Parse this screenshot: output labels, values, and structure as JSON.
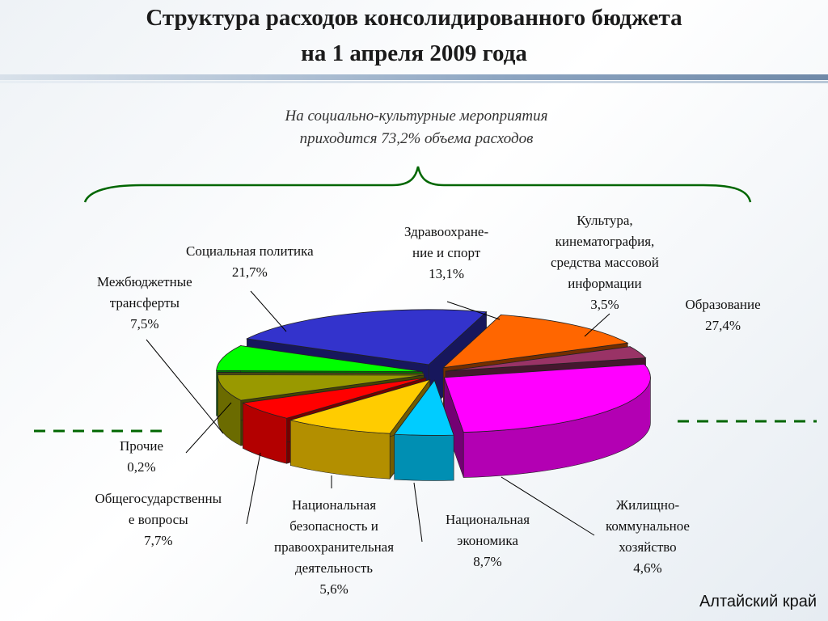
{
  "title_line1": "Структура расходов  консолидированного бюджета",
  "title_line2": "на 1 апреля 2009 года",
  "subtitle_line1": "На социально-культурные мероприятия",
  "subtitle_line2": "приходится 73,2% объема расходов",
  "footer": "Алтайский край",
  "colors": {
    "education": "#ff00ff",
    "housing": "#00ccff",
    "economy": "#ffcc00",
    "security": "#ff0000",
    "general": "#999900",
    "other": "#ffff00",
    "transfers": "#00ff00",
    "social_policy": "#3333cc",
    "health": "#ff6600",
    "culture": "#993366",
    "bracket": "#006600"
  },
  "chart_data": {
    "type": "pie",
    "title": "Структура расходов  консолидированного бюджета на 1 апреля 2009 года",
    "slices": [
      {
        "lines": [
          "Образование",
          "27,4%"
        ],
        "value": 27.4
      },
      {
        "lines": [
          "Жилищно-",
          "коммунальное",
          "хозяйство",
          "4,6%"
        ],
        "value": 4.6
      },
      {
        "lines": [
          "Национальная",
          "экономика",
          "8,7%"
        ],
        "value": 8.7
      },
      {
        "lines": [
          "Национальная",
          "безопасность и",
          "правоохранительная",
          "деятельность",
          "5,6%"
        ],
        "value": 5.6
      },
      {
        "lines": [
          "Общегосударственны",
          "е вопросы",
          "7,7%"
        ],
        "value": 7.7
      },
      {
        "lines": [
          "Прочие",
          "0,2%"
        ],
        "value": 0.2
      },
      {
        "lines": [
          "Межбюджетные",
          "трансферты",
          "7,5%"
        ],
        "value": 7.5
      },
      {
        "lines": [
          "Социальная политика",
          "21,7%"
        ],
        "value": 21.7
      },
      {
        "lines": [
          "Здравоохране-",
          "ние и спорт",
          "13,1%"
        ],
        "value": 13.1
      },
      {
        "lines": [
          "Культура,",
          "кинематография,",
          "средства массовой",
          "информации",
          "3,5%"
        ],
        "value": 3.5
      }
    ]
  }
}
